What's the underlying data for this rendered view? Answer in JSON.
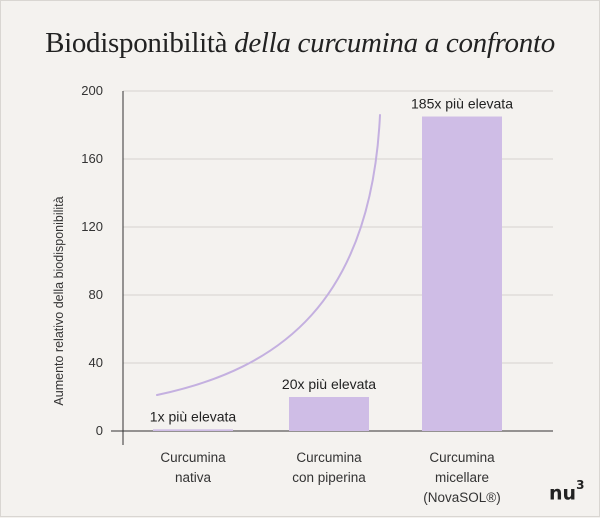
{
  "title": {
    "plain": "Biodisponibilità",
    "italic": "della curcumina a confronto"
  },
  "chart_data": {
    "type": "bar",
    "ylabel": "Aumento relativo della biodisponibilità",
    "xlabel": "",
    "ylim": [
      0,
      200
    ],
    "yticks": [
      0,
      40,
      80,
      120,
      160,
      200
    ],
    "categories": [
      [
        "Curcumina",
        "nativa"
      ],
      [
        "Curcumina",
        "con piperina"
      ],
      [
        "Curcumina",
        "micellare",
        "(NovaSOL®)"
      ]
    ],
    "values": [
      1,
      20,
      185
    ],
    "data_labels": [
      "1x più elevata",
      "20x più elevata",
      "185x più elevata"
    ],
    "grid": true,
    "bar_color": "#cfbde6",
    "curve_color": "#c4b0e0"
  },
  "logo": {
    "text": "nu",
    "sup": "3"
  }
}
